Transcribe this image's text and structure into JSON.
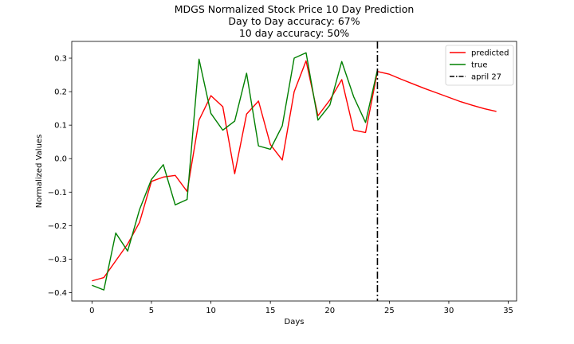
{
  "chart_data": {
    "type": "line",
    "title_lines": [
      "MDGS Normalized Stock Price 10 Day Prediction",
      "Day to Day accuracy: 67%",
      "10 day accuracy: 50%"
    ],
    "xlabel": "Days",
    "ylabel": "Normalized Values",
    "xlim": [
      -1.7,
      35.7
    ],
    "ylim": [
      -0.425,
      0.35
    ],
    "xticks": [
      0,
      5,
      10,
      15,
      20,
      25,
      30,
      35
    ],
    "xtick_labels": [
      "0",
      "5",
      "10",
      "15",
      "20",
      "25",
      "30",
      "35"
    ],
    "yticks": [
      -0.4,
      -0.3,
      -0.2,
      -0.1,
      0.0,
      0.1,
      0.2,
      0.3
    ],
    "ytick_labels": [
      "−0.4",
      "−0.3",
      "−0.2",
      "−0.1",
      "0.0",
      "0.1",
      "0.2",
      "0.3"
    ],
    "grid": false,
    "legend_position": "top-right",
    "series": [
      {
        "name": "predicted",
        "color": "#ff0000",
        "style": "solid",
        "x": [
          0,
          1,
          2,
          3,
          4,
          5,
          6,
          7,
          8,
          9,
          10,
          11,
          12,
          13,
          14,
          15,
          16,
          17,
          18,
          19,
          20,
          21,
          22,
          23,
          24,
          25,
          26,
          27,
          28,
          29,
          30,
          31,
          32,
          33,
          34
        ],
        "y": [
          -0.365,
          -0.355,
          -0.305,
          -0.255,
          -0.19,
          -0.068,
          -0.055,
          -0.05,
          -0.098,
          0.115,
          0.188,
          0.155,
          -0.045,
          0.133,
          0.172,
          0.042,
          -0.004,
          0.2,
          0.292,
          0.128,
          0.175,
          0.236,
          0.085,
          0.078,
          0.26,
          0.252,
          0.237,
          0.223,
          0.209,
          0.196,
          0.183,
          0.17,
          0.159,
          0.149,
          0.141
        ]
      },
      {
        "name": "true",
        "color": "#008000",
        "style": "solid",
        "x": [
          0,
          1,
          2,
          3,
          4,
          5,
          6,
          7,
          8,
          9,
          10,
          11,
          12,
          13,
          14,
          15,
          16,
          17,
          18,
          19,
          20,
          21,
          22,
          23,
          24
        ],
        "y": [
          -0.378,
          -0.392,
          -0.222,
          -0.276,
          -0.152,
          -0.062,
          -0.018,
          -0.138,
          -0.122,
          0.297,
          0.135,
          0.085,
          0.112,
          0.255,
          0.038,
          0.028,
          0.098,
          0.3,
          0.316,
          0.115,
          0.16,
          0.29,
          0.185,
          0.108,
          0.265
        ]
      },
      {
        "name": "april 27",
        "color": "#000000",
        "style": "dashdot",
        "vline_x": 24
      }
    ]
  }
}
